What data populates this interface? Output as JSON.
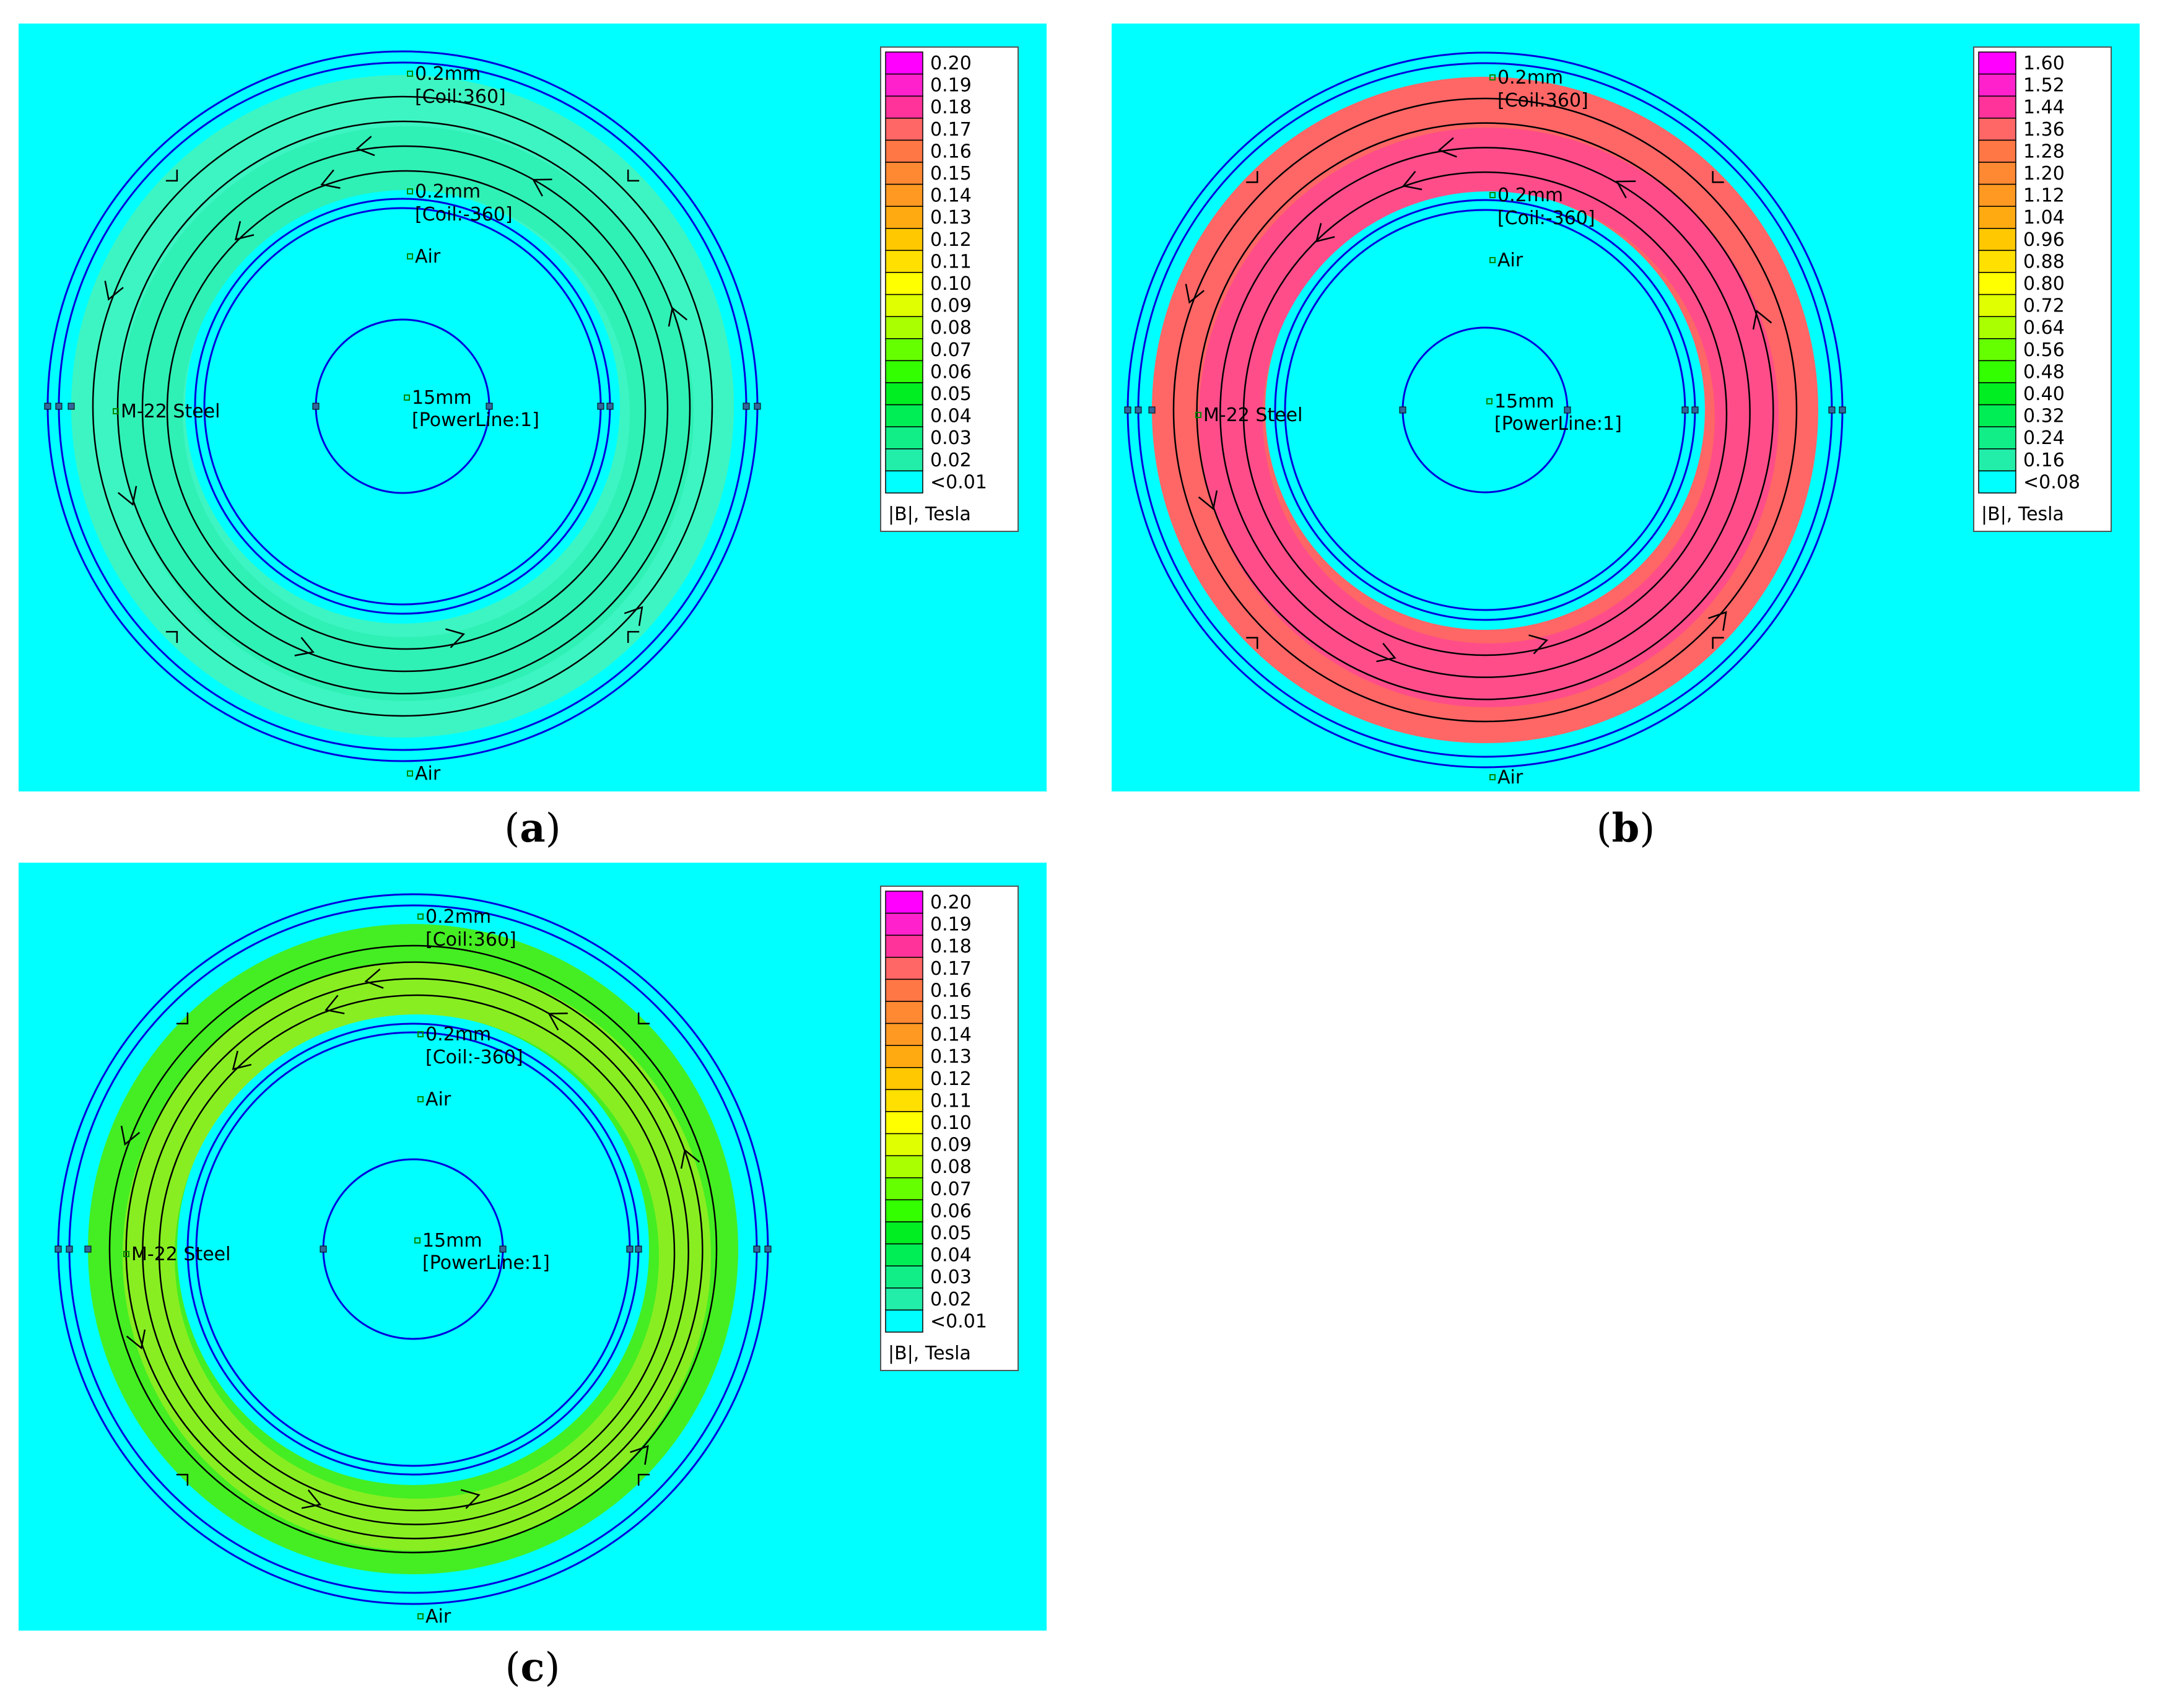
{
  "panels": [
    {
      "id": "a",
      "caption": "a",
      "colors": {
        "background": "#00ffff",
        "ring_outer": "#3df5c2",
        "ring_inner": "#2ff0b5",
        "ring_stroke": "#0000dd",
        "flux_line": "#000000"
      },
      "labels": {
        "outer_gap": "0.2mm",
        "coil_plus": "[Coil:360]",
        "inner_gap": "0.2mm",
        "coil_minus": "[Coil:-360]",
        "air_inner": "Air",
        "steel": "M-22 Steel",
        "conductor": "15mm",
        "powerline": "[PowerLine:1]",
        "air_bottom": "Air"
      },
      "legend": {
        "title": "|B|, Tesla",
        "entries": [
          {
            "label": "0.20",
            "color": "#ff00ff"
          },
          {
            "label": "0.19",
            "color": "#ff22cc"
          },
          {
            "label": "0.18",
            "color": "#ff3399"
          },
          {
            "label": "0.17",
            "color": "#ff6666"
          },
          {
            "label": "0.16",
            "color": "#ff7744"
          },
          {
            "label": "0.15",
            "color": "#ff8833"
          },
          {
            "label": "0.14",
            "color": "#ff9922"
          },
          {
            "label": "0.13",
            "color": "#ffaa11"
          },
          {
            "label": "0.12",
            "color": "#ffc800"
          },
          {
            "label": "0.11",
            "color": "#ffe000"
          },
          {
            "label": "0.10",
            "color": "#ffff00"
          },
          {
            "label": "0.09",
            "color": "#e0ff00"
          },
          {
            "label": "0.08",
            "color": "#aaff00"
          },
          {
            "label": "0.07",
            "color": "#66ff00"
          },
          {
            "label": "0.06",
            "color": "#33ff00"
          },
          {
            "label": "0.05",
            "color": "#00ee22"
          },
          {
            "label": "0.04",
            "color": "#00ee55"
          },
          {
            "label": "0.03",
            "color": "#11ee88"
          },
          {
            "label": "0.02",
            "color": "#22eeaa"
          },
          {
            "label": "<0.01",
            "color": "#00ffff"
          }
        ]
      }
    },
    {
      "id": "b",
      "caption": "b",
      "colors": {
        "background": "#00ffff",
        "ring_outer": "#ff6666",
        "ring_inner": "#ff4d8a",
        "ring_stroke": "#0000dd",
        "flux_line": "#000000"
      },
      "labels": {
        "outer_gap": "0.2mm",
        "coil_plus": "[Coil:360]",
        "inner_gap": "0.2mm",
        "coil_minus": "[Coil:-360]",
        "air_inner": "Air",
        "steel": "M-22 Steel",
        "conductor": "15mm",
        "powerline": "[PowerLine:1]",
        "air_bottom": "Air"
      },
      "legend": {
        "title": "|B|, Tesla",
        "entries": [
          {
            "label": "1.60",
            "color": "#ff00ff"
          },
          {
            "label": "1.52",
            "color": "#ff22cc"
          },
          {
            "label": "1.44",
            "color": "#ff3399"
          },
          {
            "label": "1.36",
            "color": "#ff6666"
          },
          {
            "label": "1.28",
            "color": "#ff7744"
          },
          {
            "label": "1.20",
            "color": "#ff8833"
          },
          {
            "label": "1.12",
            "color": "#ff9922"
          },
          {
            "label": "1.04",
            "color": "#ffaa11"
          },
          {
            "label": "0.96",
            "color": "#ffc800"
          },
          {
            "label": "0.88",
            "color": "#ffe000"
          },
          {
            "label": "0.80",
            "color": "#ffff00"
          },
          {
            "label": "0.72",
            "color": "#e0ff00"
          },
          {
            "label": "0.64",
            "color": "#aaff00"
          },
          {
            "label": "0.56",
            "color": "#66ff00"
          },
          {
            "label": "0.48",
            "color": "#33ff00"
          },
          {
            "label": "0.40",
            "color": "#00ee22"
          },
          {
            "label": "0.32",
            "color": "#00ee55"
          },
          {
            "label": "0.24",
            "color": "#11ee88"
          },
          {
            "label": "0.16",
            "color": "#22eeaa"
          },
          {
            "label": "<0.08",
            "color": "#00ffff"
          }
        ]
      }
    },
    {
      "id": "c",
      "caption": "c",
      "colors": {
        "background": "#00ffff",
        "ring_outer": "#44ee22",
        "ring_inner": "#88ee22",
        "ring_stroke": "#0000dd",
        "flux_line": "#000000"
      },
      "labels": {
        "outer_gap": "0.2mm",
        "coil_plus": "[Coil:360]",
        "inner_gap": "0.2mm",
        "coil_minus": "[Coil:-360]",
        "air_inner": "Air",
        "steel": "M-22 Steel",
        "conductor": "15mm",
        "powerline": "[PowerLine:1]",
        "air_bottom": "Air"
      },
      "legend": {
        "title": "|B|, Tesla",
        "entries": [
          {
            "label": "0.20",
            "color": "#ff00ff"
          },
          {
            "label": "0.19",
            "color": "#ff22cc"
          },
          {
            "label": "0.18",
            "color": "#ff3399"
          },
          {
            "label": "0.17",
            "color": "#ff6666"
          },
          {
            "label": "0.16",
            "color": "#ff7744"
          },
          {
            "label": "0.15",
            "color": "#ff8833"
          },
          {
            "label": "0.14",
            "color": "#ff9922"
          },
          {
            "label": "0.13",
            "color": "#ffaa11"
          },
          {
            "label": "0.12",
            "color": "#ffc800"
          },
          {
            "label": "0.11",
            "color": "#ffe000"
          },
          {
            "label": "0.10",
            "color": "#ffff00"
          },
          {
            "label": "0.09",
            "color": "#e0ff00"
          },
          {
            "label": "0.08",
            "color": "#aaff00"
          },
          {
            "label": "0.07",
            "color": "#66ff00"
          },
          {
            "label": "0.06",
            "color": "#33ff00"
          },
          {
            "label": "0.05",
            "color": "#00ee22"
          },
          {
            "label": "0.04",
            "color": "#00ee55"
          },
          {
            "label": "0.03",
            "color": "#11ee88"
          },
          {
            "label": "0.02",
            "color": "#22eeaa"
          },
          {
            "label": "<0.01",
            "color": "#00ffff"
          }
        ]
      }
    }
  ]
}
